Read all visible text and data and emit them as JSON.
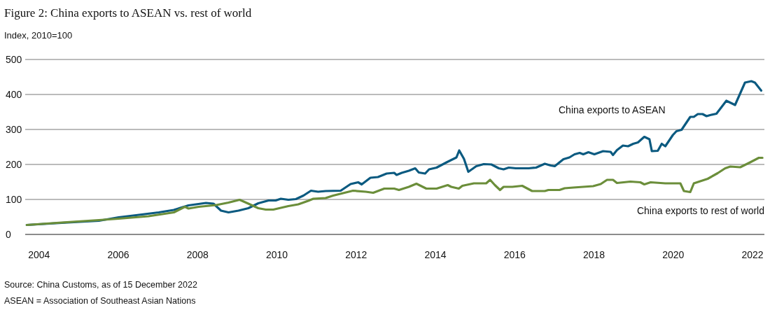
{
  "chart_data": {
    "type": "line",
    "title": "Figure 2: China exports to ASEAN vs. rest of world",
    "ylabel": "Index, 2010=100",
    "annotations": [
      "Source: China Customs, as of 15 December 2022",
      "ASEAN = Association of Southeast Asian Nations"
    ],
    "xlim": [
      2003.65,
      2022.3
    ],
    "xticks": [
      2004,
      2006,
      2008,
      2010,
      2012,
      2014,
      2016,
      2018,
      2020,
      2022
    ],
    "ylim": [
      0,
      500
    ],
    "yticks": [
      0,
      100,
      200,
      300,
      400,
      500
    ],
    "grid": "y",
    "legend": false,
    "line_style": "solid",
    "marker": "none",
    "series": [
      {
        "name": "China exports to ASEAN",
        "color": "#0b5a80",
        "x": [
          2003.69,
          2004.57,
          2005.51,
          2006.01,
          2006.45,
          2007.02,
          2007.4,
          2007.77,
          2008.21,
          2008.4,
          2008.59,
          2008.78,
          2009.03,
          2009.28,
          2009.53,
          2009.79,
          2009.97,
          2010.1,
          2010.29,
          2010.48,
          2010.67,
          2010.86,
          2011.04,
          2011.23,
          2011.61,
          2011.86,
          2012.05,
          2012.14,
          2012.36,
          2012.55,
          2012.77,
          2012.96,
          2013.02,
          2013.15,
          2013.33,
          2013.49,
          2013.58,
          2013.74,
          2013.84,
          2014.03,
          2014.28,
          2014.53,
          2014.6,
          2014.72,
          2014.83,
          2015.03,
          2015.22,
          2015.41,
          2015.6,
          2015.72,
          2015.85,
          2016.03,
          2016.35,
          2016.54,
          2016.76,
          2016.91,
          2017.01,
          2017.23,
          2017.38,
          2017.51,
          2017.64,
          2017.73,
          2017.86,
          2018.01,
          2018.23,
          2018.42,
          2018.48,
          2018.58,
          2018.73,
          2018.86,
          2018.99,
          2019.11,
          2019.27,
          2019.4,
          2019.46,
          2019.61,
          2019.71,
          2019.8,
          2019.99,
          2020.08,
          2020.21,
          2020.43,
          2020.52,
          2020.62,
          2020.74,
          2020.84,
          2020.93,
          2021.09,
          2021.34,
          2021.56,
          2021.81,
          2021.97,
          2022.06,
          2022.22
        ],
        "values": [
          27,
          33,
          39,
          49,
          55,
          63,
          70,
          83,
          90,
          88,
          68,
          63,
          68,
          75,
          89,
          97,
          97,
          102,
          99,
          101,
          111,
          125,
          122,
          124,
          125,
          144,
          149,
          143,
          162,
          164,
          174,
          176,
          170,
          176,
          182,
          189,
          177,
          174,
          186,
          191,
          206,
          220,
          240,
          216,
          179,
          195,
          201,
          200,
          189,
          186,
          191,
          189,
          189,
          191,
          202,
          197,
          195,
          215,
          220,
          229,
          233,
          229,
          235,
          229,
          238,
          236,
          227,
          241,
          254,
          252,
          259,
          263,
          279,
          272,
          238,
          239,
          259,
          252,
          284,
          295,
          299,
          336,
          336,
          344,
          344,
          338,
          341,
          345,
          382,
          370,
          434,
          438,
          434,
          411
        ]
      },
      {
        "name": "China exports to rest of world",
        "color": "#6b8e3a",
        "x": [
          2003.69,
          2004.57,
          2005.51,
          2006.01,
          2006.76,
          2007.4,
          2007.68,
          2007.77,
          2008.03,
          2008.47,
          2008.78,
          2009.06,
          2009.28,
          2009.53,
          2009.72,
          2009.91,
          2010.29,
          2010.54,
          2010.79,
          2010.92,
          2011.23,
          2011.42,
          2011.67,
          2011.92,
          2012.24,
          2012.43,
          2012.71,
          2012.96,
          2013.08,
          2013.33,
          2013.52,
          2013.77,
          2014.03,
          2014.31,
          2014.4,
          2014.59,
          2014.68,
          2014.97,
          2015.28,
          2015.38,
          2015.5,
          2015.63,
          2015.72,
          2015.94,
          2016.19,
          2016.44,
          2016.76,
          2016.85,
          2017.13,
          2017.26,
          2017.48,
          2017.98,
          2018.17,
          2018.33,
          2018.48,
          2018.58,
          2018.92,
          2019.17,
          2019.27,
          2019.43,
          2019.8,
          2020.18,
          2020.27,
          2020.43,
          2020.52,
          2020.87,
          2021.12,
          2021.31,
          2021.44,
          2021.69,
          2021.94,
          2022.16,
          2022.25
        ],
        "values": [
          27,
          34,
          41,
          45,
          52,
          63,
          79,
          74,
          79,
          84,
          91,
          99,
          88,
          75,
          71,
          71,
          81,
          86,
          96,
          102,
          104,
          111,
          118,
          125,
          122,
          119,
          131,
          131,
          127,
          136,
          145,
          131,
          131,
          141,
          136,
          131,
          139,
          146,
          146,
          156,
          141,
          127,
          136,
          136,
          139,
          124,
          124,
          127,
          127,
          132,
          134,
          138,
          144,
          156,
          156,
          147,
          151,
          149,
          143,
          149,
          146,
          146,
          124,
          121,
          146,
          159,
          175,
          189,
          194,
          192,
          206,
          219,
          219
        ]
      }
    ]
  }
}
